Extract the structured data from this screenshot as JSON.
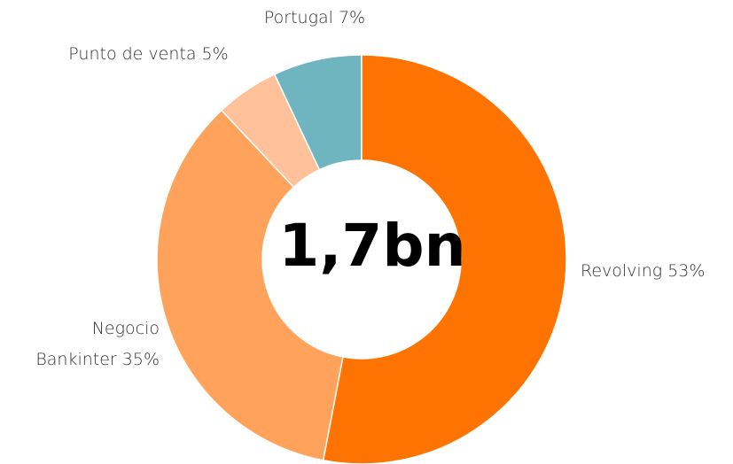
{
  "chart_data": {
    "type": "donut",
    "center_label": "1,7bn",
    "categories": [
      "Revolving",
      "Negocio Bankinter",
      "Punto de venta",
      "Portugal"
    ],
    "values": [
      53,
      35,
      5,
      7
    ],
    "value_labels": [
      "53%",
      "35%",
      "5%",
      "7%"
    ],
    "colors": [
      "#ff7300",
      "#ffa35c",
      "#ffc199",
      "#6fb5c0"
    ]
  }
}
